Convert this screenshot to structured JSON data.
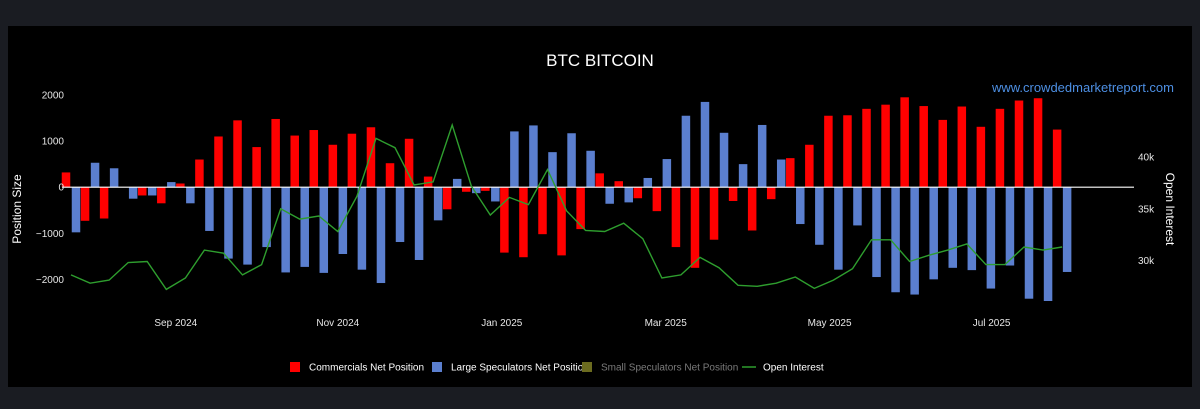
{
  "chart_data": {
    "type": "bar",
    "title": "BTC BITCOIN",
    "watermark": "www.crowdedmarketreport.com",
    "ylabel": "Position Size",
    "y2label": "Open Interest",
    "ylim": [
      -2600,
      2000
    ],
    "y_ticks": [
      2000,
      1000,
      0,
      -1000,
      -2000
    ],
    "y_tick_labels": [
      "2000",
      "1000",
      "0",
      "−1000",
      "−2000"
    ],
    "y2lim": [
      25500,
      46000
    ],
    "y2_ticks": [
      40000,
      35000,
      30000
    ],
    "y2_tick_labels": [
      "40k",
      "35k",
      "30k"
    ],
    "x_tick_labels": [
      "Sep 2024",
      "Nov 2024",
      "Jan 2025",
      "Mar 2025",
      "May 2025",
      "Jul 2025"
    ],
    "x_tick_indices": [
      5.5,
      14,
      22.6,
      31.2,
      39.8,
      48.3
    ],
    "x_count": 53,
    "colors": {
      "background": "#000000",
      "frame": "#1a1c22",
      "commercials": "#ff0000",
      "large_speculators": "#5b7fcf",
      "small_speculators": "#6b6b1f",
      "open_interest": "#2e9e2e",
      "zero_line": "#ffffff",
      "legend_dim": "#7a7a7a"
    },
    "series": [
      {
        "name": "Commercials Net Position",
        "kind": "bar",
        "values": [
          320,
          -730,
          -680,
          0,
          -180,
          -350,
          80,
          600,
          1100,
          1450,
          870,
          1480,
          1120,
          1240,
          920,
          1160,
          1300,
          520,
          1050,
          230,
          -480,
          -100,
          -80,
          -1420,
          -1520,
          -1020,
          -1480,
          -910,
          300,
          130,
          -240,
          -520,
          -1300,
          -1750,
          -1140,
          -300,
          -940,
          -260,
          630,
          920,
          1550,
          1560,
          1700,
          1790,
          1950,
          1760,
          1460,
          1750,
          1310,
          1700,
          1880,
          1930,
          1250
        ],
        "offset": -1
      },
      {
        "name": "Large Speculators Net Position",
        "kind": "bar",
        "values": [
          -980,
          530,
          410,
          -250,
          -180,
          110,
          -350,
          -950,
          -1550,
          -1680,
          -1300,
          -1850,
          -1730,
          -1860,
          -1450,
          -1790,
          -2080,
          -1190,
          -1580,
          -720,
          180,
          -130,
          -310,
          1210,
          1340,
          760,
          1170,
          790,
          -360,
          -330,
          200,
          610,
          1550,
          1850,
          1180,
          500,
          1350,
          600,
          -800,
          -1250,
          -1790,
          -830,
          -1950,
          -2280,
          -2330,
          -2000,
          -1750,
          -1800,
          -2200,
          -1700,
          -2420,
          -2470,
          -1840
        ],
        "offset": 1
      },
      {
        "name": "Small Speculators Net Position",
        "kind": "bar",
        "values": []
      },
      {
        "name": "Open Interest",
        "kind": "line",
        "axis": "right",
        "values": [
          28600,
          27800,
          28100,
          29800,
          29900,
          27200,
          28300,
          31000,
          30700,
          28600,
          29600,
          35000,
          34000,
          34300,
          32800,
          36200,
          41800,
          40900,
          37300,
          37600,
          43100,
          37200,
          34400,
          36100,
          35400,
          38800,
          34800,
          32900,
          32800,
          33600,
          32100,
          28300,
          28600,
          30300,
          29300,
          27600,
          27500,
          27800,
          28400,
          27300,
          28100,
          29200,
          32000,
          32000,
          29900,
          30500,
          31000,
          31600,
          29600,
          29600,
          31300,
          31000,
          31300
        ]
      }
    ],
    "legend": {
      "placement": "bottom-center",
      "items": [
        {
          "label": "Commercials Net Position",
          "color": "#ff0000",
          "symbol": "box",
          "dim": false
        },
        {
          "label": "Large Speculators Net Position",
          "color": "#5b7fcf",
          "symbol": "box",
          "dim": false
        },
        {
          "label": "Small Speculators Net Position",
          "color": "#6b6b1f",
          "symbol": "box",
          "dim": true
        },
        {
          "label": "Open Interest",
          "color": "#2e9e2e",
          "symbol": "line",
          "dim": false
        }
      ]
    },
    "grid": false
  }
}
